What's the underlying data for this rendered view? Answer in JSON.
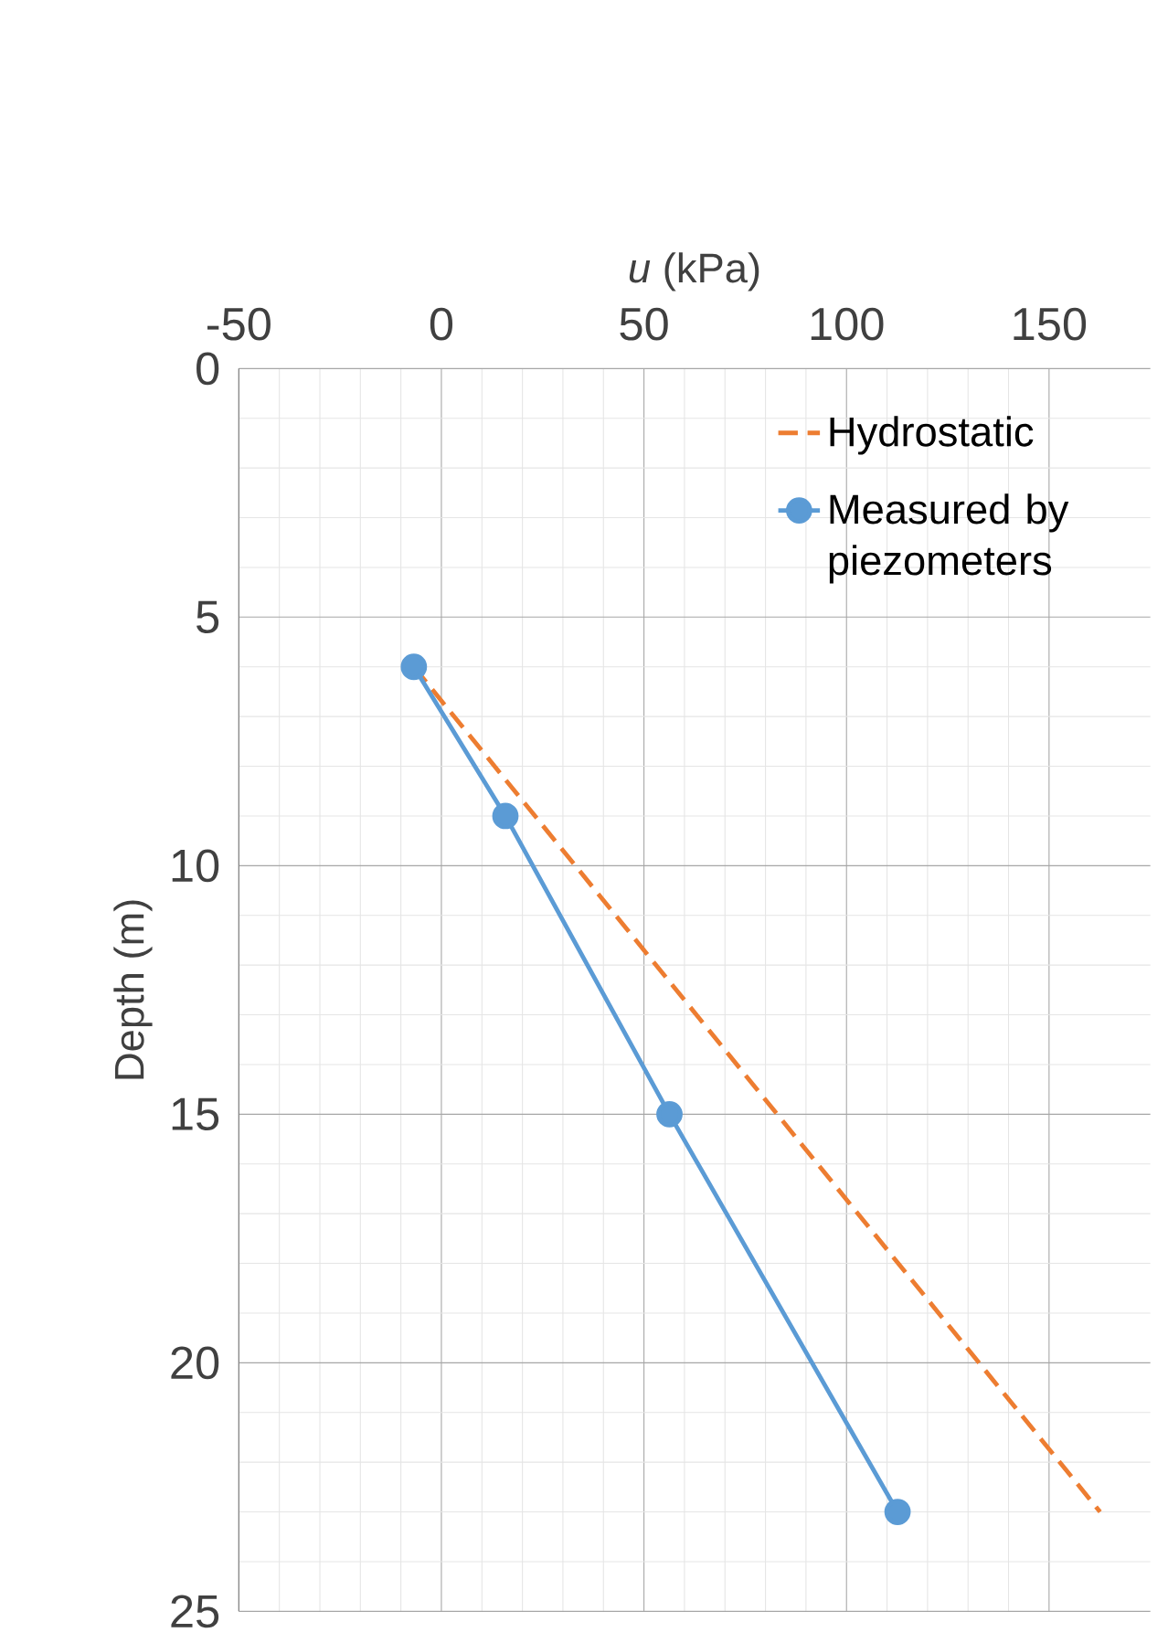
{
  "chart_data": {
    "type": "line",
    "xlabel": "*u* (kPa)",
    "ylabel": "Depth (m)",
    "xlim": [
      -50,
      175
    ],
    "xticks": [
      -50,
      0,
      50,
      100,
      150
    ],
    "ylim": [
      25,
      0
    ],
    "yticks": [
      0,
      5,
      10,
      15,
      20,
      25
    ],
    "grid": true,
    "legend": "top right",
    "series": [
      {
        "name": "Hydrostatic",
        "color": "#ed7d31",
        "line_style": "dashed",
        "marker": "none",
        "x": [
          -6.8,
          162.6
        ],
        "values": [
          6,
          23
        ]
      },
      {
        "name": "Measured by piezometers",
        "color": "#5b9bd5",
        "line_style": "solid",
        "marker": "circle",
        "x": [
          -6.8,
          15.8,
          56.3,
          112.6
        ],
        "values": [
          6,
          9,
          15,
          23
        ]
      }
    ]
  }
}
